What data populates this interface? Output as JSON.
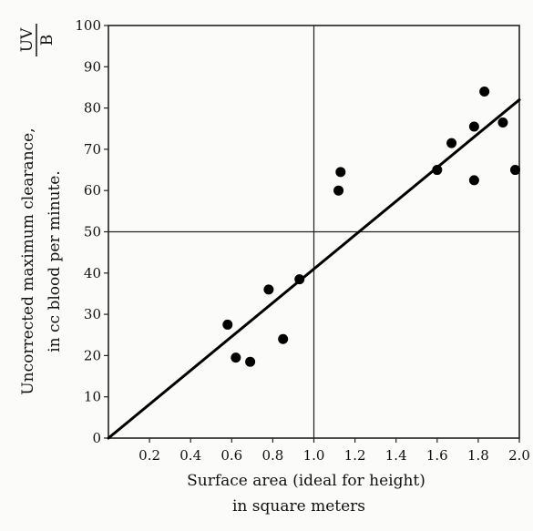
{
  "chart_data": {
    "type": "scatter",
    "xlabel_line1": "Surface area (ideal for height)",
    "xlabel_line2": "in square meters",
    "ylabel_line1": "Uncorrected maximum clearance,",
    "ylabel_line2": "in cc blood per minute.",
    "ylabel_fraction_numerator": "UV",
    "ylabel_fraction_denominator": "B",
    "xlim": [
      0,
      2.0
    ],
    "ylim": [
      0,
      100
    ],
    "x_ticks": [
      0.2,
      0.4,
      0.6,
      0.8,
      1.0,
      1.2,
      1.4,
      1.6,
      1.8,
      2.0
    ],
    "x_tick_labels": [
      "0.2",
      "0.4",
      "0.6",
      "0.8",
      "1.0",
      "1.2",
      "1.4",
      "1.6",
      "1.8",
      "2.0"
    ],
    "y_ticks": [
      0,
      10,
      20,
      30,
      40,
      50,
      60,
      70,
      80,
      90,
      100
    ],
    "y_tick_labels": [
      "0",
      "10",
      "20",
      "30",
      "40",
      "50",
      "60",
      "70",
      "80",
      "90",
      "100"
    ],
    "reference_lines": {
      "x": 1.0,
      "y": 50
    },
    "points": [
      {
        "x": 0.58,
        "y": 27.5
      },
      {
        "x": 0.62,
        "y": 19.5
      },
      {
        "x": 0.69,
        "y": 18.5
      },
      {
        "x": 0.78,
        "y": 36
      },
      {
        "x": 0.85,
        "y": 24
      },
      {
        "x": 0.93,
        "y": 38.5
      },
      {
        "x": 1.12,
        "y": 60
      },
      {
        "x": 1.13,
        "y": 64.5
      },
      {
        "x": 1.6,
        "y": 65
      },
      {
        "x": 1.67,
        "y": 71.5
      },
      {
        "x": 1.78,
        "y": 75.5
      },
      {
        "x": 1.78,
        "y": 62.5
      },
      {
        "x": 1.83,
        "y": 84
      },
      {
        "x": 1.92,
        "y": 76.5
      },
      {
        "x": 1.98,
        "y": 65
      }
    ],
    "trend_line": {
      "x": [
        0,
        2.0
      ],
      "y": [
        0,
        82
      ]
    }
  }
}
